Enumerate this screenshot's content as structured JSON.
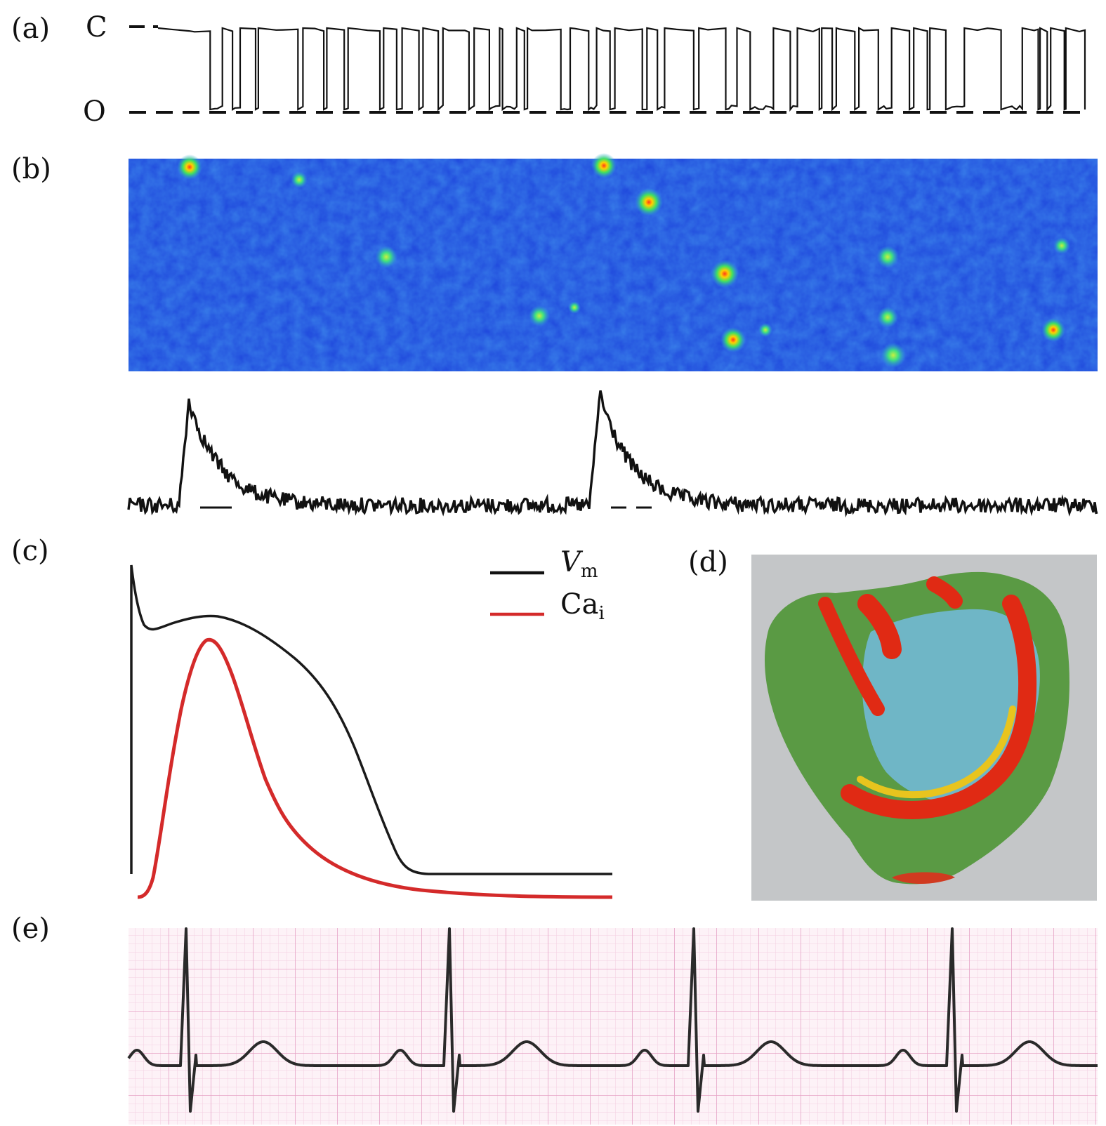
{
  "panels": {
    "a": {
      "label": "(a)",
      "state_closed": "C",
      "state_open": "O"
    },
    "b": {
      "label": "(b)"
    },
    "c": {
      "label": "(c)",
      "legend": [
        {
          "symbol": "V",
          "subscript": "m",
          "color": "#111111"
        },
        {
          "symbol": "Ca",
          "subscript": "i",
          "color": "#d42a2a"
        }
      ]
    },
    "d": {
      "label": "(d)"
    },
    "e": {
      "label": "(e)"
    }
  },
  "colors": {
    "trace": "#111111",
    "calcium": "#d42a2a",
    "heatmap_bg": "#1f4fe0",
    "ecg_grid_minor": "#f3c9dd",
    "ecg_grid_major": "#e39ac0",
    "heart_bg": "#c4c6c8"
  }
}
